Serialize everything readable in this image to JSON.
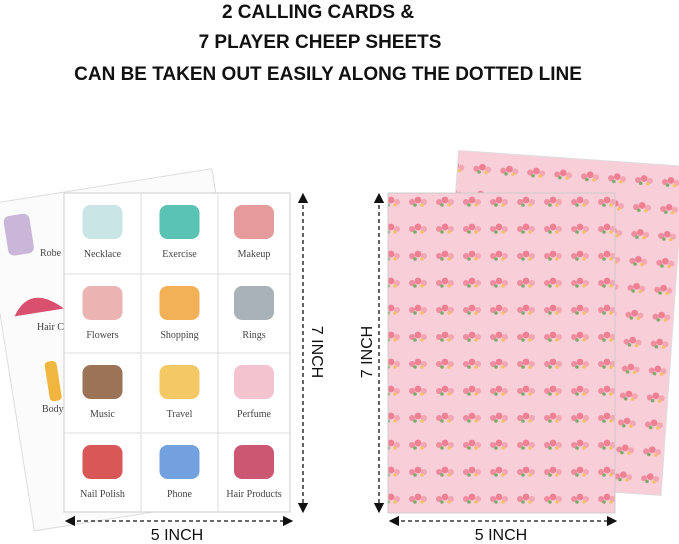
{
  "header": {
    "lines": [
      "2 CALLING CARDS &",
      "7 PLAYER CHEEP SHEETS",
      "CAN BE TAKEN OUT EASILY ALONG THE DOTTED LINE"
    ]
  },
  "back_card": {
    "labels": [
      "Robe",
      "Hair C",
      "Body"
    ]
  },
  "front_card": {
    "cells": [
      "Necklace",
      "Exercise",
      "Makeup",
      "Flowers",
      "Shopping",
      "Rings",
      "Music",
      "Travel",
      "Perfume",
      "Nail Polish",
      "Phone",
      "Hair Products"
    ]
  },
  "dimensions": {
    "left_height": "7 INCH",
    "left_width": "5 INCH",
    "right_height": "7 INCH",
    "right_width": "5 INCH"
  }
}
